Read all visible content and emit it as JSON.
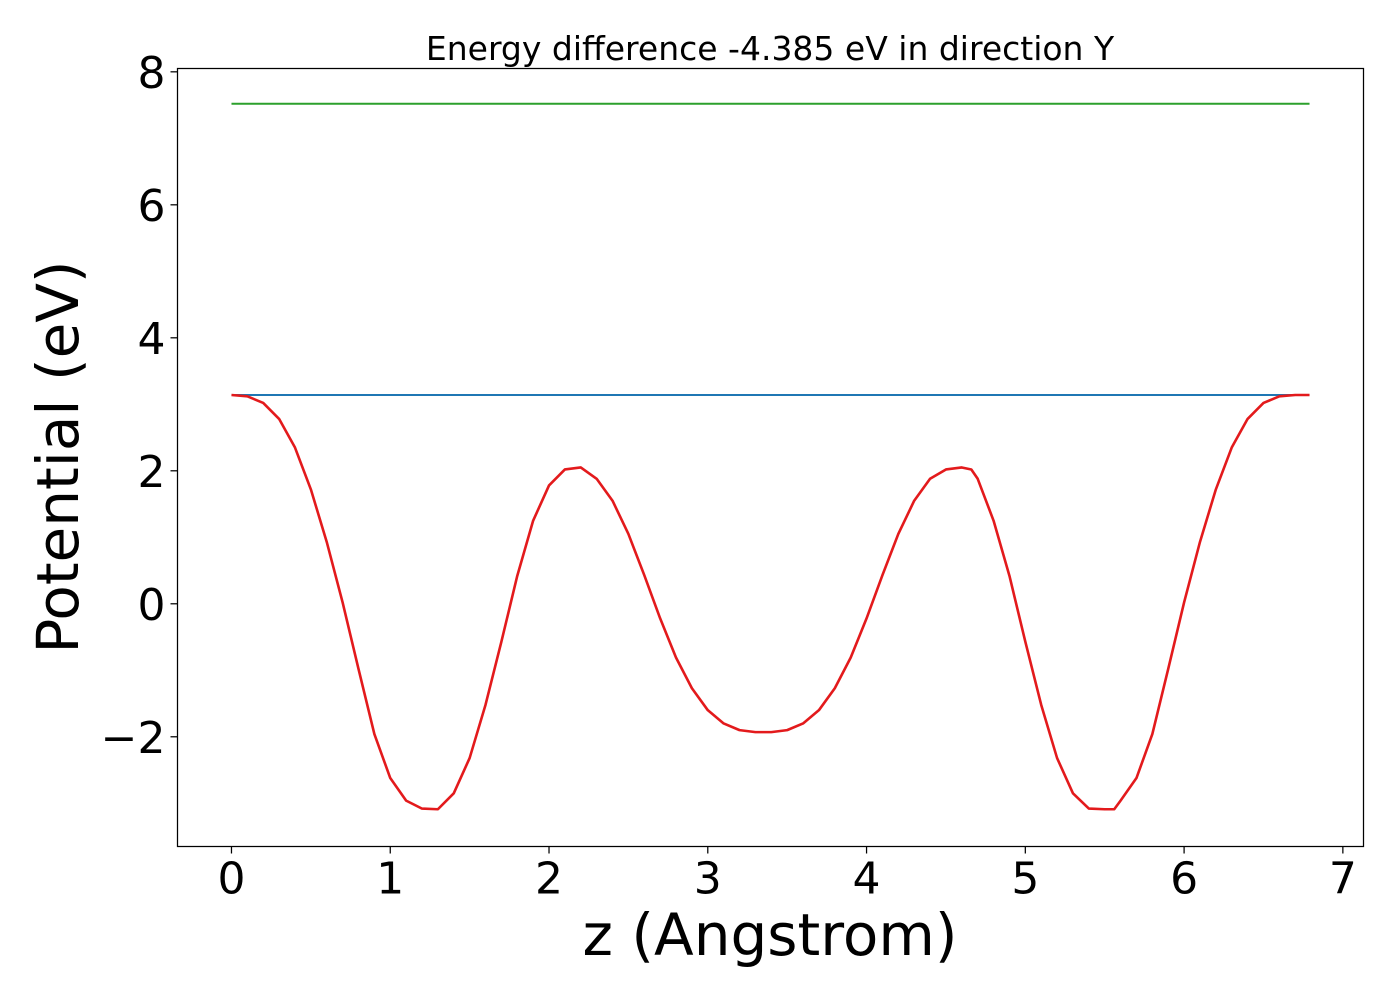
{
  "chart_data": {
    "type": "line",
    "title": "Energy difference -4.385 eV in direction Y",
    "xlabel": "z (Angstrom)",
    "ylabel": "Potential (eV)",
    "xlim": [
      -0.34,
      7.13
    ],
    "ylim": [
      -3.65,
      8.05
    ],
    "x_ticks": [
      0,
      1,
      2,
      3,
      4,
      5,
      6,
      7
    ],
    "x_tick_labels": [
      "0",
      "1",
      "2",
      "3",
      "4",
      "5",
      "6",
      "7"
    ],
    "y_ticks": [
      -2,
      0,
      2,
      4,
      6,
      8
    ],
    "y_tick_labels": [
      "−2",
      "0",
      "2",
      "4",
      "6",
      "8"
    ],
    "grid": false,
    "legend": "none",
    "series": [
      {
        "color": "#2ca02c",
        "x": [
          0,
          6.79
        ],
        "y": [
          7.52,
          7.52
        ]
      },
      {
        "color": "#1f77b4",
        "x": [
          0,
          6.79
        ],
        "y": [
          3.14,
          3.14
        ]
      },
      {
        "color": "#e31a1c",
        "x": [
          0,
          0.1,
          0.2,
          0.3,
          0.4,
          0.5,
          0.6,
          0.7,
          0.8,
          0.9,
          1.0,
          1.1,
          1.2,
          1.3,
          1.4,
          1.5,
          1.6,
          1.7,
          1.8,
          1.9,
          2.0,
          2.1,
          2.2,
          2.3,
          2.4,
          2.5,
          2.6,
          2.7,
          2.8,
          2.9,
          3.0,
          3.1,
          3.2,
          3.3,
          3.4,
          3.5,
          3.6,
          3.7,
          3.8,
          3.9,
          4.0,
          4.1,
          4.2,
          4.3,
          4.4,
          4.5,
          4.6,
          4.66,
          4.7,
          4.8,
          4.9,
          5.0,
          5.1,
          5.2,
          5.3,
          5.4,
          5.5,
          5.56,
          5.6,
          5.7,
          5.8,
          5.9,
          6.0,
          6.1,
          6.2,
          6.3,
          6.4,
          6.5,
          6.6,
          6.7,
          6.79
        ],
        "y": [
          3.14,
          3.12,
          3.02,
          2.78,
          2.35,
          1.72,
          0.93,
          0.02,
          -0.98,
          -1.96,
          -2.62,
          -2.96,
          -3.08,
          -3.09,
          -2.85,
          -2.32,
          -1.52,
          -0.57,
          0.42,
          1.25,
          1.78,
          2.02,
          2.05,
          1.88,
          1.55,
          1.05,
          0.43,
          -0.22,
          -0.81,
          -1.27,
          -1.6,
          -1.8,
          -1.9,
          -1.93,
          -1.93,
          -1.9,
          -1.8,
          -1.6,
          -1.27,
          -0.81,
          -0.22,
          0.43,
          1.05,
          1.55,
          1.88,
          2.02,
          2.05,
          2.02,
          1.88,
          1.25,
          0.42,
          -0.57,
          -1.52,
          -2.32,
          -2.85,
          -3.08,
          -3.09,
          -3.09,
          -2.96,
          -2.62,
          -1.96,
          -0.98,
          0.02,
          0.93,
          1.72,
          2.35,
          2.78,
          3.02,
          3.12,
          3.14,
          3.14
        ]
      }
    ]
  }
}
